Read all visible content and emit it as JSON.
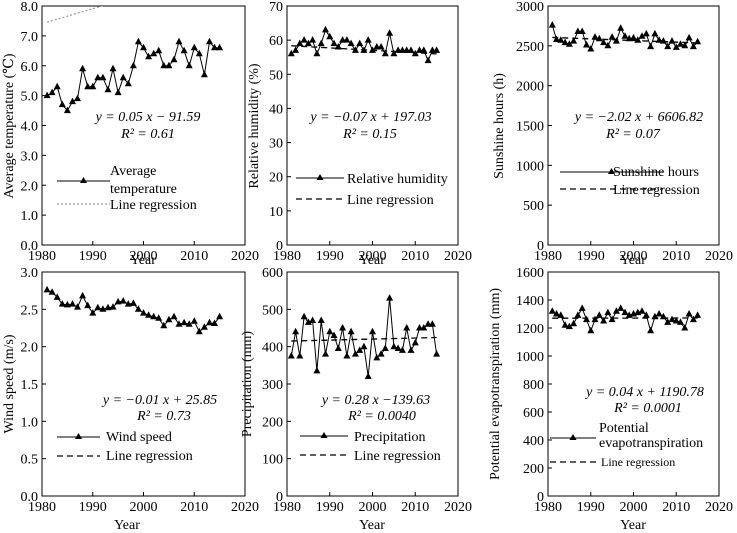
{
  "chart_data": [
    {
      "type": "line",
      "ylabel": "Average temperature (℃)",
      "xlabel": "Year",
      "xlim": [
        1980,
        2020
      ],
      "ylim": [
        0,
        8
      ],
      "xticks": [
        "1980",
        "1990",
        "2000",
        "2010",
        "2020"
      ],
      "yticks": [
        "0.0",
        "1.0",
        "2.0",
        "3.0",
        "4.0",
        "5.0",
        "6.0",
        "7.0",
        "8.0"
      ],
      "x": [
        1981,
        1982,
        1983,
        1984,
        1985,
        1986,
        1987,
        1988,
        1989,
        1990,
        1991,
        1992,
        1993,
        1994,
        1995,
        1996,
        1997,
        1998,
        1999,
        2000,
        2001,
        2002,
        2003,
        2004,
        2005,
        2006,
        2007,
        2008,
        2009,
        2010,
        2011,
        2012,
        2013,
        2014,
        2015
      ],
      "series": [
        {
          "name": "Average temperature",
          "values": [
            5.0,
            5.1,
            5.3,
            4.7,
            4.5,
            4.8,
            4.9,
            5.9,
            5.3,
            5.3,
            5.6,
            5.6,
            5.2,
            5.9,
            5.1,
            5.6,
            5.4,
            6.0,
            6.8,
            6.6,
            6.3,
            6.4,
            6.5,
            6.0,
            6.0,
            6.2,
            6.8,
            6.5,
            6.0,
            6.6,
            6.4,
            5.7,
            6.8,
            6.6,
            6.6
          ]
        }
      ],
      "regression": {
        "slope": 0.05,
        "intercept": -91.59
      },
      "equation": "y = 0.05 x − 91.59",
      "r2": "R² = 0.61",
      "legend": [
        "Average",
        "temperature",
        "Line regression"
      ],
      "legend_position": "center-left"
    },
    {
      "type": "line",
      "ylabel": "Relative humidity (%)",
      "xlabel": "Year",
      "xlim": [
        1980,
        2020
      ],
      "ylim": [
        0,
        70
      ],
      "xticks": [
        "1980",
        "1990",
        "2000",
        "2010",
        "2020"
      ],
      "yticks": [
        "0",
        "10",
        "20",
        "30",
        "40",
        "50",
        "60",
        "70"
      ],
      "x": [
        1981,
        1982,
        1983,
        1984,
        1985,
        1986,
        1987,
        1988,
        1989,
        1990,
        1991,
        1992,
        1993,
        1994,
        1995,
        1996,
        1997,
        1998,
        1999,
        2000,
        2001,
        2002,
        2003,
        2004,
        2005,
        2006,
        2007,
        2008,
        2009,
        2010,
        2011,
        2012,
        2013,
        2014,
        2015
      ],
      "series": [
        {
          "name": "Relative humidity",
          "values": [
            56,
            57,
            59,
            60,
            59,
            60,
            56,
            59,
            63,
            61,
            59,
            58,
            60,
            60,
            59,
            57,
            59,
            57,
            60,
            57,
            58,
            58,
            56,
            62,
            56,
            57,
            57,
            57,
            57,
            56,
            57,
            57,
            54,
            57,
            57
          ]
        }
      ],
      "regression": {
        "slope": -0.07,
        "intercept": 197.03
      },
      "equation": "y = −0.07 x + 197.03",
      "r2": "R² = 0.15",
      "legend": [
        "Relative humidity",
        "Line regression"
      ],
      "legend_position": "center-left"
    },
    {
      "type": "line",
      "ylabel": "Sunshine hours (h)",
      "xlabel": "Year",
      "xlim": [
        1980,
        2020
      ],
      "ylim": [
        0,
        3000
      ],
      "xticks": [
        "1980",
        "1990",
        "2000",
        "2010",
        "2020"
      ],
      "yticks": [
        "0",
        "500",
        "1000",
        "1500",
        "2000",
        "2500",
        "3000"
      ],
      "x": [
        1981,
        1982,
        1983,
        1984,
        1985,
        1986,
        1987,
        1988,
        1989,
        1990,
        1991,
        1992,
        1993,
        1994,
        1995,
        1996,
        1997,
        1998,
        1999,
        2000,
        2001,
        2002,
        2003,
        2004,
        2005,
        2006,
        2007,
        2008,
        2009,
        2010,
        2011,
        2012,
        2013,
        2014,
        2015
      ],
      "series": [
        {
          "name": "Sunshine hours",
          "values": [
            2760,
            2580,
            2570,
            2540,
            2520,
            2560,
            2680,
            2680,
            2510,
            2460,
            2610,
            2590,
            2540,
            2500,
            2610,
            2560,
            2720,
            2620,
            2590,
            2600,
            2570,
            2620,
            2650,
            2490,
            2650,
            2570,
            2560,
            2490,
            2560,
            2480,
            2520,
            2500,
            2600,
            2490,
            2550
          ]
        }
      ],
      "regression": {
        "slope": -2.02,
        "intercept": 6606.82
      },
      "equation": "y = −2.02 x + 6606.82",
      "r2": "R² = 0.07",
      "legend": [
        "Sunshine hours",
        "Line regression"
      ],
      "legend_position": "bottom-right"
    },
    {
      "type": "line",
      "ylabel": "Wind speed (m/s)",
      "xlabel": "Year",
      "xlim": [
        1980,
        2020
      ],
      "ylim": [
        0,
        3
      ],
      "xticks": [
        "1980",
        "1990",
        "2000",
        "2010",
        "2020"
      ],
      "yticks": [
        "0.0",
        "0.5",
        "1.0",
        "1.5",
        "2.0",
        "2.5",
        "3.0"
      ],
      "x": [
        1981,
        1982,
        1983,
        1984,
        1985,
        1986,
        1987,
        1988,
        1989,
        1990,
        1991,
        1992,
        1993,
        1994,
        1995,
        1996,
        1997,
        1998,
        1999,
        2000,
        2001,
        2002,
        2003,
        2004,
        2005,
        2006,
        2007,
        2008,
        2009,
        2010,
        2011,
        2012,
        2013,
        2014,
        2015
      ],
      "series": [
        {
          "name": "Wind speed",
          "values": [
            2.76,
            2.73,
            2.66,
            2.57,
            2.56,
            2.57,
            2.53,
            2.68,
            2.55,
            2.45,
            2.52,
            2.5,
            2.52,
            2.53,
            2.6,
            2.61,
            2.57,
            2.58,
            2.5,
            2.45,
            2.42,
            2.4,
            2.38,
            2.28,
            2.36,
            2.4,
            2.3,
            2.32,
            2.3,
            2.34,
            2.2,
            2.26,
            2.32,
            2.31,
            2.4
          ]
        }
      ],
      "regression": {
        "slope": -0.01,
        "intercept": 25.85
      },
      "equation": "y = −0.01 x + 25.85",
      "r2": "R² = 0.73",
      "legend": [
        "Wind speed",
        "Line regression"
      ],
      "legend_position": "bottom-left"
    },
    {
      "type": "line",
      "ylabel": "Precipitation (mm)",
      "xlabel": "Year",
      "xlim": [
        1980,
        2020
      ],
      "ylim": [
        0,
        600
      ],
      "xticks": [
        "1980",
        "1990",
        "2000",
        "2010",
        "2020"
      ],
      "yticks": [
        "0",
        "100",
        "200",
        "300",
        "400",
        "500",
        "600"
      ],
      "x": [
        1981,
        1982,
        1983,
        1984,
        1985,
        1986,
        1987,
        1988,
        1989,
        1990,
        1991,
        1992,
        1993,
        1994,
        1995,
        1996,
        1997,
        1998,
        1999,
        2000,
        2001,
        2002,
        2003,
        2004,
        2005,
        2006,
        2007,
        2008,
        2009,
        2010,
        2011,
        2012,
        2013,
        2014,
        2015
      ],
      "series": [
        {
          "name": "Precipitation",
          "values": [
            375,
            440,
            375,
            480,
            465,
            470,
            335,
            470,
            380,
            440,
            430,
            395,
            450,
            375,
            440,
            380,
            390,
            400,
            320,
            440,
            370,
            380,
            395,
            530,
            400,
            395,
            390,
            450,
            390,
            410,
            450,
            450,
            460,
            460,
            380
          ]
        }
      ],
      "regression": {
        "slope": 0.28,
        "intercept": -139.63
      },
      "equation": "y = 0.28 x −139.63",
      "r2": "R² = 0.0040",
      "legend": [
        "Precipitation",
        "Line regression"
      ],
      "legend_position": "bottom-left"
    },
    {
      "type": "line",
      "ylabel": "Potential evapotranspiration (mm)",
      "xlabel": "Year",
      "xlim": [
        1980,
        2020
      ],
      "ylim": [
        0,
        1600
      ],
      "xticks": [
        "1980",
        "1990",
        "2000",
        "2010",
        "2020"
      ],
      "yticks": [
        "0",
        "200",
        "400",
        "600",
        "800",
        "1000",
        "1200",
        "1400",
        "1600"
      ],
      "x": [
        1981,
        1982,
        1983,
        1984,
        1985,
        1986,
        1987,
        1988,
        1989,
        1990,
        1991,
        1992,
        1993,
        1994,
        1995,
        1996,
        1997,
        1998,
        1999,
        2000,
        2001,
        2002,
        2003,
        2004,
        2005,
        2006,
        2007,
        2008,
        2009,
        2010,
        2011,
        2012,
        2013,
        2014,
        2015
      ],
      "series": [
        {
          "name": "Potential evapotranspiration",
          "values": [
            1320,
            1300,
            1290,
            1220,
            1210,
            1230,
            1290,
            1340,
            1260,
            1180,
            1260,
            1290,
            1250,
            1310,
            1260,
            1320,
            1340,
            1310,
            1290,
            1300,
            1310,
            1320,
            1290,
            1180,
            1280,
            1300,
            1280,
            1240,
            1260,
            1250,
            1240,
            1200,
            1300,
            1260,
            1290
          ]
        }
      ],
      "regression": {
        "slope": 0.04,
        "intercept": 1190.78
      },
      "equation": "y = 0.04 x + 1190.78",
      "r2": "R² = 0.0001",
      "legend": [
        "Potential",
        "evapotranspiration",
        "Line regression"
      ],
      "legend_position": "bottom-left"
    }
  ]
}
